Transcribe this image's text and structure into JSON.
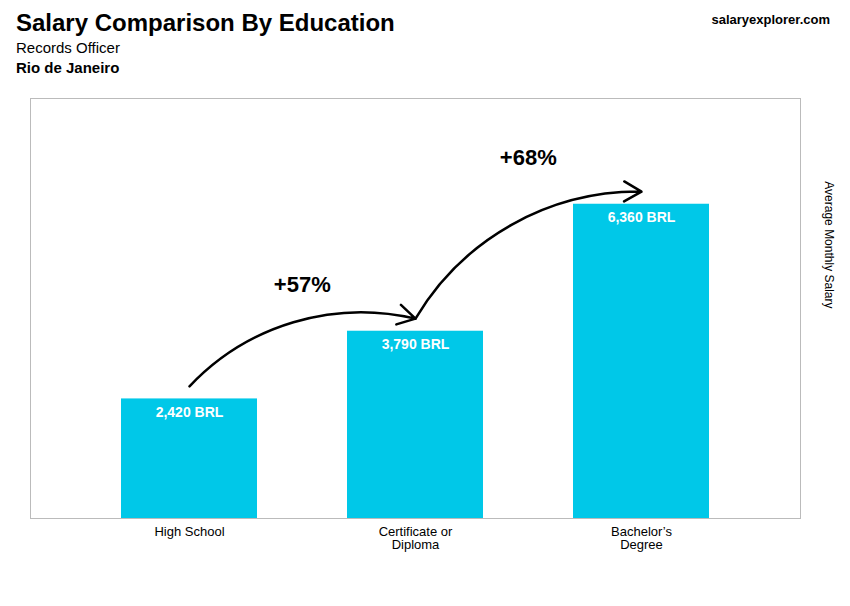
{
  "chart_data": {
    "type": "bar",
    "title": "Salary Comparison By Education",
    "subtitle": [
      "Records Officer",
      "Rio de Janeiro"
    ],
    "source": "salaryexplorer.com",
    "ylabel": "Average Monthly Salary",
    "categories": [
      "High School",
      "Certificate or\nDiploma",
      "Bachelor’s\nDegree"
    ],
    "values": [
      2420,
      3790,
      6360
    ],
    "value_labels": [
      "2,420 BRL",
      "3,790 BRL",
      "6,360 BRL"
    ],
    "data_labels": true,
    "annotations": [
      "+57%",
      "+68%"
    ],
    "color": "#00c8e8",
    "ylim": [
      0,
      8500
    ],
    "yticks": [],
    "tick_labels": "x",
    "grid": false
  }
}
